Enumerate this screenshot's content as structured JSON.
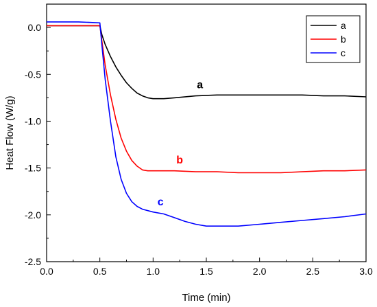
{
  "chart_data": {
    "type": "line",
    "title": "",
    "xlabel": "Time (min)",
    "ylabel": "Heat Flow (W/g)",
    "xlim": [
      0.0,
      3.0
    ],
    "ylim": [
      -2.5,
      0.25
    ],
    "x_ticks": [
      0.0,
      0.5,
      1.0,
      1.5,
      2.0,
      2.5,
      3.0
    ],
    "x_tick_labels": [
      "0.0",
      "0.5",
      "1.0",
      "1.5",
      "2.0",
      "2.5",
      "3.0"
    ],
    "y_ticks": [
      0.0,
      -0.5,
      -1.0,
      -1.5,
      -2.0,
      -2.5
    ],
    "y_tick_labels": [
      "0.0",
      "-0.5",
      "-1.0",
      "-1.5",
      "-2.0",
      "-2.5"
    ],
    "grid": false,
    "legend": {
      "position": "top-right",
      "frame": true
    },
    "series": [
      {
        "name": "a",
        "color": "#000000",
        "points": [
          [
            0.0,
            0.02
          ],
          [
            0.3,
            0.02
          ],
          [
            0.5,
            0.02
          ],
          [
            0.52,
            -0.08
          ],
          [
            0.55,
            -0.18
          ],
          [
            0.6,
            -0.31
          ],
          [
            0.65,
            -0.42
          ],
          [
            0.7,
            -0.51
          ],
          [
            0.75,
            -0.59
          ],
          [
            0.8,
            -0.65
          ],
          [
            0.85,
            -0.7
          ],
          [
            0.9,
            -0.73
          ],
          [
            0.95,
            -0.75
          ],
          [
            1.0,
            -0.76
          ],
          [
            1.1,
            -0.76
          ],
          [
            1.2,
            -0.75
          ],
          [
            1.4,
            -0.73
          ],
          [
            1.6,
            -0.72
          ],
          [
            1.8,
            -0.72
          ],
          [
            2.0,
            -0.72
          ],
          [
            2.2,
            -0.72
          ],
          [
            2.4,
            -0.72
          ],
          [
            2.6,
            -0.73
          ],
          [
            2.8,
            -0.73
          ],
          [
            3.0,
            -0.74
          ]
        ]
      },
      {
        "name": "b",
        "color": "#ff0000",
        "points": [
          [
            0.0,
            0.02
          ],
          [
            0.3,
            0.02
          ],
          [
            0.5,
            0.02
          ],
          [
            0.52,
            -0.15
          ],
          [
            0.55,
            -0.4
          ],
          [
            0.6,
            -0.72
          ],
          [
            0.65,
            -0.98
          ],
          [
            0.7,
            -1.18
          ],
          [
            0.75,
            -1.32
          ],
          [
            0.8,
            -1.42
          ],
          [
            0.85,
            -1.48
          ],
          [
            0.9,
            -1.52
          ],
          [
            0.95,
            -1.53
          ],
          [
            1.0,
            -1.53
          ],
          [
            1.2,
            -1.53
          ],
          [
            1.4,
            -1.54
          ],
          [
            1.6,
            -1.54
          ],
          [
            1.8,
            -1.55
          ],
          [
            2.0,
            -1.55
          ],
          [
            2.2,
            -1.55
          ],
          [
            2.4,
            -1.54
          ],
          [
            2.6,
            -1.53
          ],
          [
            2.8,
            -1.53
          ],
          [
            3.0,
            -1.52
          ]
        ]
      },
      {
        "name": "c",
        "color": "#0000ff",
        "points": [
          [
            0.0,
            0.06
          ],
          [
            0.3,
            0.06
          ],
          [
            0.5,
            0.05
          ],
          [
            0.52,
            -0.2
          ],
          [
            0.55,
            -0.55
          ],
          [
            0.6,
            -1.0
          ],
          [
            0.65,
            -1.38
          ],
          [
            0.7,
            -1.62
          ],
          [
            0.75,
            -1.77
          ],
          [
            0.8,
            -1.86
          ],
          [
            0.85,
            -1.91
          ],
          [
            0.9,
            -1.94
          ],
          [
            1.0,
            -1.97
          ],
          [
            1.1,
            -1.99
          ],
          [
            1.2,
            -2.03
          ],
          [
            1.3,
            -2.07
          ],
          [
            1.4,
            -2.1
          ],
          [
            1.5,
            -2.12
          ],
          [
            1.6,
            -2.12
          ],
          [
            1.8,
            -2.12
          ],
          [
            2.0,
            -2.1
          ],
          [
            2.2,
            -2.08
          ],
          [
            2.4,
            -2.06
          ],
          [
            2.6,
            -2.04
          ],
          [
            2.8,
            -2.02
          ],
          [
            3.0,
            -1.99
          ]
        ]
      }
    ],
    "annotations": [
      {
        "text": "a",
        "x": 1.44,
        "y": -0.65,
        "color": "#000000"
      },
      {
        "text": "b",
        "x": 1.25,
        "y": -1.45,
        "color": "#ff0000"
      },
      {
        "text": "c",
        "x": 1.07,
        "y": -1.9,
        "color": "#0000ff"
      }
    ]
  }
}
